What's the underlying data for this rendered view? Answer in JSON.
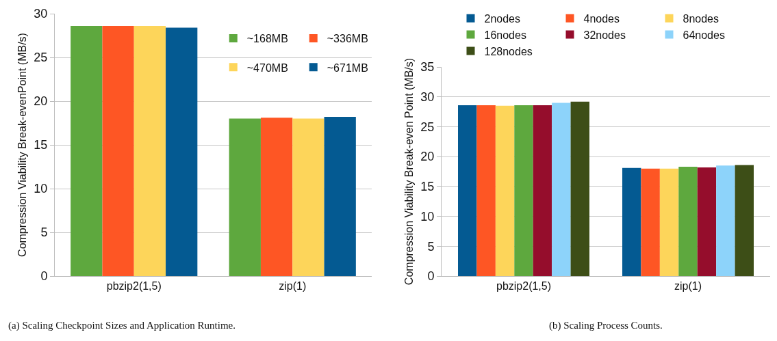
{
  "chart_data": [
    {
      "type": "bar",
      "ylabel": "Compression Viability Break-evenPoint (MB/s)",
      "categories": [
        "pbzip2(1,5)",
        "zip(1)"
      ],
      "series": [
        {
          "name": "~168MB",
          "color": "#5ea83e",
          "values": [
            28.6,
            18.0
          ]
        },
        {
          "name": "~336MB",
          "color": "#fe5624",
          "values": [
            28.6,
            18.1
          ]
        },
        {
          "name": "~470MB",
          "color": "#fdd55a",
          "values": [
            28.6,
            18.0
          ]
        },
        {
          "name": "~671MB",
          "color": "#045a92",
          "values": [
            28.4,
            18.2
          ]
        }
      ],
      "ylim": [
        0,
        30
      ],
      "yticks": [
        0,
        5,
        10,
        15,
        20,
        25,
        30
      ],
      "grid": "y",
      "legend": "top right",
      "annotations": [
        "(a) Scaling Checkpoint Sizes and Application Runtime."
      ]
    },
    {
      "type": "bar",
      "ylabel": "Compression Viability Break-even Point (MB/s)",
      "categories": [
        "pbzip2(1,5)",
        "zip(1)"
      ],
      "series": [
        {
          "name": "2nodes",
          "color": "#045a92",
          "values": [
            28.6,
            18.1
          ]
        },
        {
          "name": "4nodes",
          "color": "#fe5624",
          "values": [
            28.6,
            18.0
          ]
        },
        {
          "name": "8nodes",
          "color": "#fdd55a",
          "values": [
            28.5,
            18.0
          ]
        },
        {
          "name": "16nodes",
          "color": "#5ea83e",
          "values": [
            28.6,
            18.3
          ]
        },
        {
          "name": "32nodes",
          "color": "#950d2c",
          "values": [
            28.6,
            18.2
          ]
        },
        {
          "name": "64nodes",
          "color": "#8dd3fa",
          "values": [
            29.0,
            18.5
          ]
        },
        {
          "name": "128nodes",
          "color": "#3d4e17",
          "values": [
            29.2,
            18.6
          ]
        }
      ],
      "ylim": [
        0,
        35
      ],
      "yticks": [
        0,
        5,
        10,
        15,
        20,
        25,
        30,
        35
      ],
      "grid": "y",
      "legend": "top",
      "annotations": [
        "(b) Scaling Process Counts."
      ]
    }
  ]
}
